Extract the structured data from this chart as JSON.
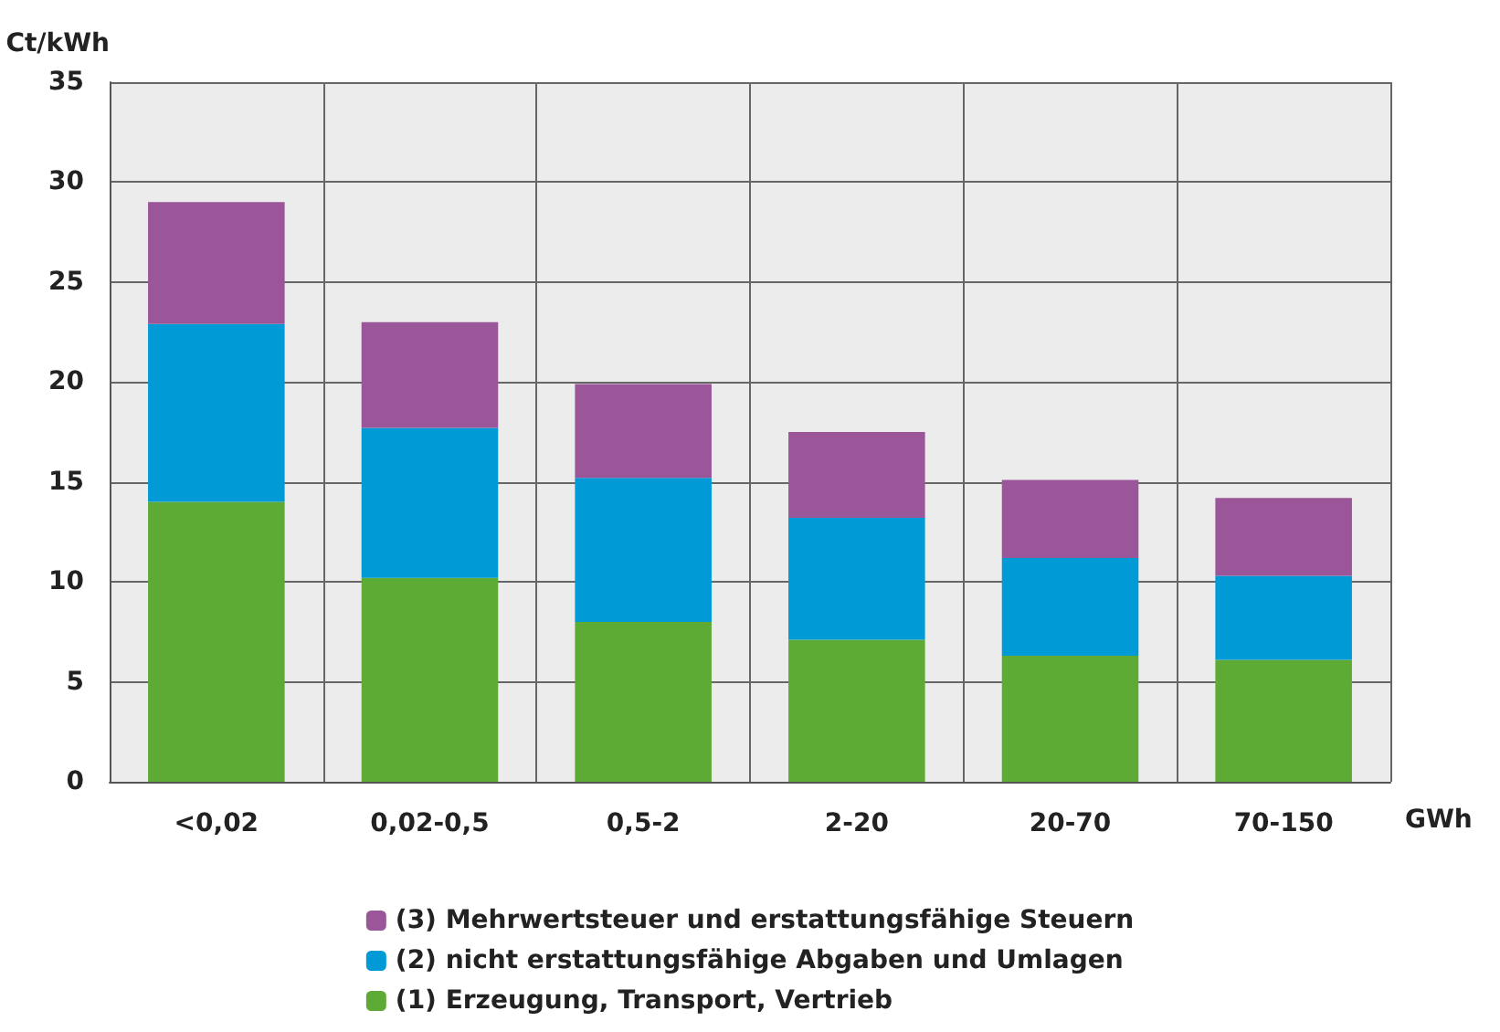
{
  "chart_data": {
    "type": "bar",
    "stacked": true,
    "xlabel": "GWh",
    "ylabel": "Ct/kWh",
    "categories": [
      "<0,02",
      "0,02-0,5",
      "0,5-2",
      "2-20",
      "20-70",
      "70-150"
    ],
    "series": [
      {
        "name": "(1) Erzeugung, Transport, Vertrieb",
        "color": "#5dab35",
        "values": [
          14.0,
          10.2,
          8.0,
          7.1,
          6.3,
          6.1
        ]
      },
      {
        "name": "(2) nicht erstattungsfähige Abgaben und Umlagen",
        "color": "#009ad6",
        "values": [
          8.9,
          7.5,
          7.2,
          6.1,
          4.9,
          4.2
        ]
      },
      {
        "name": "(3) Mehrwertsteuer und erstattungsfähige Steuern",
        "color": "#9b5699",
        "values": [
          6.1,
          5.3,
          4.7,
          4.3,
          3.9,
          3.9
        ]
      }
    ],
    "ylim": [
      0,
      35
    ],
    "yticks": [
      0,
      5,
      10,
      15,
      20,
      25,
      30,
      35
    ],
    "grid": true,
    "legend": "bottom"
  }
}
